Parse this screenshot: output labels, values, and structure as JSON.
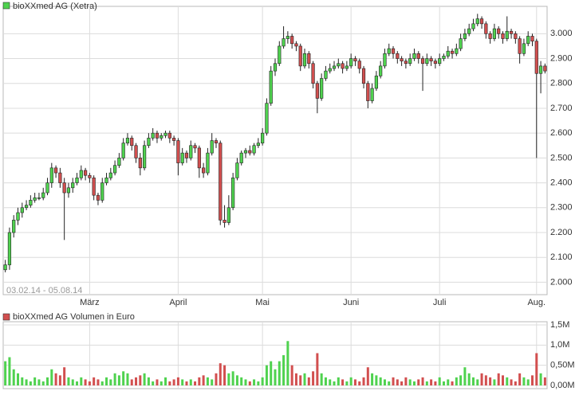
{
  "chart_data": [
    {
      "type": "candlestick",
      "title": "bioXXmed AG (Xetra)",
      "annotation": "03.02.14 - 05.08.14",
      "up_color": "#4fd24f",
      "down_color": "#d24f4f",
      "grid": true,
      "categories": [
        null,
        null,
        null,
        null,
        null,
        null,
        null,
        null,
        null,
        null,
        null,
        null,
        null,
        null,
        null,
        null,
        null,
        null,
        null,
        null,
        "März",
        null,
        null,
        null,
        null,
        null,
        null,
        null,
        null,
        null,
        null,
        null,
        null,
        null,
        null,
        null,
        null,
        null,
        null,
        null,
        null,
        "April",
        null,
        null,
        null,
        null,
        null,
        null,
        null,
        null,
        null,
        null,
        null,
        null,
        null,
        null,
        null,
        null,
        null,
        null,
        null,
        "Mai",
        null,
        null,
        null,
        null,
        null,
        null,
        null,
        null,
        null,
        null,
        null,
        null,
        null,
        null,
        null,
        null,
        null,
        null,
        null,
        null,
        "Juni",
        null,
        null,
        null,
        null,
        null,
        null,
        null,
        null,
        null,
        null,
        null,
        null,
        null,
        null,
        null,
        null,
        null,
        null,
        null,
        null,
        "Juli",
        null,
        null,
        null,
        null,
        null,
        null,
        null,
        null,
        null,
        null,
        null,
        null,
        null,
        null,
        null,
        null,
        null,
        null,
        null,
        null,
        null,
        null,
        "Aug.",
        null,
        null
      ],
      "open": [
        2.05,
        2.07,
        2.2,
        2.25,
        2.28,
        2.3,
        2.31,
        2.33,
        2.34,
        2.34,
        2.36,
        2.4,
        2.46,
        2.44,
        2.4,
        2.36,
        2.38,
        2.4,
        2.42,
        2.45,
        2.43,
        2.42,
        2.35,
        2.33,
        2.4,
        2.42,
        2.44,
        2.47,
        2.5,
        2.56,
        2.58,
        2.55,
        2.5,
        2.46,
        2.55,
        2.58,
        2.6,
        2.58,
        2.59,
        2.6,
        2.58,
        2.57,
        2.48,
        2.52,
        2.5,
        2.55,
        2.54,
        2.46,
        2.44,
        2.52,
        2.57,
        2.56,
        2.25,
        2.24,
        2.3,
        2.42,
        2.48,
        2.52,
        2.53,
        2.52,
        2.55,
        2.56,
        2.6,
        2.72,
        2.85,
        2.88,
        2.95,
        2.98,
        2.99,
        2.96,
        2.95,
        2.87,
        2.92,
        2.88,
        2.8,
        2.74,
        2.82,
        2.85,
        2.86,
        2.87,
        2.88,
        2.86,
        2.87,
        2.9,
        2.89,
        2.86,
        2.8,
        2.73,
        2.78,
        2.83,
        2.87,
        2.92,
        2.94,
        2.92,
        2.9,
        2.89,
        2.88,
        2.9,
        2.92,
        2.9,
        2.88,
        2.9,
        2.89,
        2.88,
        2.9,
        2.91,
        2.93,
        2.92,
        2.94,
        2.98,
        3.0,
        3.02,
        3.04,
        3.06,
        3.04,
        3.0,
        2.98,
        3.02,
        3.0,
        2.98,
        3.01,
        3.0,
        2.98,
        2.92,
        2.96,
        2.99,
        2.97,
        2.84,
        2.87
      ],
      "high": [
        2.09,
        2.22,
        2.27,
        2.3,
        2.32,
        2.33,
        2.35,
        2.36,
        2.36,
        2.38,
        2.42,
        2.48,
        2.47,
        2.46,
        2.42,
        2.4,
        2.42,
        2.44,
        2.47,
        2.46,
        2.44,
        2.43,
        2.36,
        2.42,
        2.44,
        2.46,
        2.49,
        2.52,
        2.58,
        2.6,
        2.59,
        2.56,
        2.52,
        2.57,
        2.6,
        2.62,
        2.61,
        2.6,
        2.61,
        2.61,
        2.59,
        2.58,
        2.54,
        2.53,
        2.57,
        2.56,
        2.55,
        2.48,
        2.54,
        2.6,
        2.58,
        2.57,
        2.31,
        2.35,
        2.44,
        2.5,
        2.53,
        2.54,
        2.55,
        2.56,
        2.58,
        2.62,
        2.74,
        2.87,
        2.9,
        2.97,
        3.03,
        3.01,
        3.0,
        2.97,
        2.96,
        2.94,
        2.93,
        2.89,
        2.81,
        2.84,
        2.87,
        2.88,
        2.89,
        2.9,
        2.89,
        2.89,
        2.92,
        2.91,
        2.9,
        2.87,
        2.81,
        2.8,
        2.85,
        2.89,
        2.94,
        2.96,
        2.95,
        2.93,
        2.91,
        2.9,
        2.92,
        2.94,
        2.93,
        2.91,
        2.92,
        2.91,
        2.9,
        2.92,
        2.92,
        2.95,
        2.94,
        2.96,
        3.0,
        3.02,
        3.04,
        3.06,
        3.08,
        3.07,
        3.05,
        3.01,
        3.04,
        3.03,
        3.01,
        3.07,
        3.02,
        3.01,
        2.99,
        2.98,
        3.01,
        3.0,
        2.98,
        2.89,
        2.88
      ],
      "low": [
        2.04,
        2.05,
        2.18,
        2.23,
        2.26,
        2.29,
        2.3,
        2.32,
        2.33,
        2.33,
        2.35,
        2.38,
        2.42,
        2.38,
        2.17,
        2.34,
        2.36,
        2.39,
        2.41,
        2.41,
        2.4,
        2.33,
        2.31,
        2.32,
        2.39,
        2.41,
        2.43,
        2.46,
        2.49,
        2.55,
        2.53,
        2.48,
        2.43,
        2.45,
        2.54,
        2.57,
        2.56,
        2.57,
        2.58,
        2.56,
        2.55,
        2.43,
        2.47,
        2.48,
        2.49,
        2.52,
        2.42,
        2.42,
        2.43,
        2.51,
        2.54,
        2.23,
        2.22,
        2.23,
        2.29,
        2.41,
        2.47,
        2.5,
        2.51,
        2.51,
        2.54,
        2.55,
        2.59,
        2.71,
        2.83,
        2.87,
        2.94,
        2.96,
        2.94,
        2.93,
        2.85,
        2.86,
        2.86,
        2.78,
        2.68,
        2.73,
        2.81,
        2.84,
        2.85,
        2.86,
        2.84,
        2.85,
        2.86,
        2.87,
        2.84,
        2.78,
        2.7,
        2.72,
        2.77,
        2.82,
        2.86,
        2.91,
        2.9,
        2.88,
        2.87,
        2.86,
        2.87,
        2.89,
        2.88,
        2.77,
        2.87,
        2.87,
        2.86,
        2.87,
        2.89,
        2.9,
        2.9,
        2.91,
        2.93,
        2.97,
        2.99,
        3.01,
        3.03,
        3.02,
        2.98,
        2.96,
        2.97,
        2.98,
        2.96,
        2.97,
        2.98,
        2.96,
        2.88,
        2.91,
        2.95,
        2.95,
        2.5,
        2.76,
        2.84
      ],
      "close": [
        2.07,
        2.2,
        2.25,
        2.28,
        2.3,
        2.31,
        2.33,
        2.34,
        2.34,
        2.36,
        2.4,
        2.46,
        2.44,
        2.4,
        2.36,
        2.38,
        2.4,
        2.42,
        2.45,
        2.43,
        2.42,
        2.35,
        2.33,
        2.4,
        2.42,
        2.44,
        2.47,
        2.5,
        2.56,
        2.58,
        2.55,
        2.5,
        2.46,
        2.55,
        2.58,
        2.6,
        2.58,
        2.59,
        2.6,
        2.58,
        2.57,
        2.48,
        2.52,
        2.5,
        2.55,
        2.54,
        2.46,
        2.44,
        2.52,
        2.57,
        2.56,
        2.25,
        2.24,
        2.3,
        2.42,
        2.48,
        2.52,
        2.53,
        2.52,
        2.55,
        2.56,
        2.6,
        2.72,
        2.85,
        2.88,
        2.95,
        2.98,
        2.99,
        2.96,
        2.95,
        2.87,
        2.92,
        2.88,
        2.8,
        2.74,
        2.82,
        2.85,
        2.86,
        2.87,
        2.88,
        2.86,
        2.87,
        2.9,
        2.89,
        2.86,
        2.8,
        2.73,
        2.78,
        2.83,
        2.87,
        2.92,
        2.94,
        2.92,
        2.9,
        2.89,
        2.88,
        2.9,
        2.92,
        2.9,
        2.88,
        2.9,
        2.89,
        2.88,
        2.9,
        2.91,
        2.93,
        2.92,
        2.94,
        2.98,
        3.0,
        3.02,
        3.04,
        3.06,
        3.04,
        3.0,
        2.98,
        3.02,
        3.0,
        2.98,
        3.01,
        3.0,
        2.98,
        2.92,
        2.96,
        2.99,
        2.97,
        2.84,
        2.87,
        2.85
      ],
      "ylim": [
        1.95,
        3.11
      ],
      "yticks": [
        {
          "value": 2.0,
          "label": "2.000"
        },
        {
          "value": 2.1,
          "label": "2.100"
        },
        {
          "value": 2.2,
          "label": "2.200"
        },
        {
          "value": 2.3,
          "label": "2.300"
        },
        {
          "value": 2.4,
          "label": "2.400"
        },
        {
          "value": 2.5,
          "label": "2.500"
        },
        {
          "value": 2.6,
          "label": "2.600"
        },
        {
          "value": 2.7,
          "label": "2.700"
        },
        {
          "value": 2.8,
          "label": "2.800"
        },
        {
          "value": 2.9,
          "label": "2.900"
        },
        {
          "value": 3.0,
          "label": "3.000"
        }
      ]
    },
    {
      "type": "bar",
      "title": "bioXXmed AG Volumen in Euro",
      "values": [
        0.6,
        0.7,
        0.4,
        0.3,
        0.2,
        0.15,
        0.1,
        0.2,
        0.15,
        0.1,
        0.2,
        0.4,
        0.3,
        0.25,
        0.45,
        0.2,
        0.15,
        0.1,
        0.2,
        0.15,
        0.1,
        0.2,
        0.15,
        0.1,
        0.2,
        0.15,
        0.3,
        0.25,
        0.35,
        0.3,
        0.15,
        0.2,
        0.25,
        0.3,
        0.2,
        0.1,
        0.15,
        0.1,
        0.2,
        0.1,
        0.15,
        0.2,
        0.15,
        0.1,
        0.15,
        0.1,
        0.2,
        0.25,
        0.2,
        0.15,
        0.3,
        0.55,
        0.5,
        0.3,
        0.35,
        0.25,
        0.2,
        0.15,
        0.1,
        0.15,
        0.1,
        0.2,
        0.5,
        0.6,
        0.4,
        0.6,
        0.75,
        1.1,
        0.5,
        0.3,
        0.25,
        0.3,
        0.2,
        0.35,
        0.8,
        0.3,
        0.2,
        0.15,
        0.1,
        0.2,
        0.15,
        0.1,
        0.2,
        0.15,
        0.1,
        0.2,
        0.45,
        0.3,
        0.25,
        0.2,
        0.15,
        0.1,
        0.2,
        0.15,
        0.1,
        0.2,
        0.15,
        0.1,
        0.15,
        0.2,
        0.1,
        0.15,
        0.1,
        0.2,
        0.1,
        0.15,
        0.1,
        0.2,
        0.25,
        0.45,
        0.3,
        0.2,
        0.15,
        0.3,
        0.25,
        0.2,
        0.15,
        0.3,
        0.25,
        0.2,
        0.15,
        0.1,
        0.3,
        0.2,
        0.15,
        0.25,
        0.8,
        0.3,
        0.2
      ],
      "ylim": [
        0,
        1.5
      ],
      "yticks": [
        {
          "value": 0,
          "label": "0,00M"
        },
        {
          "value": 0.5,
          "label": "0,50M"
        },
        {
          "value": 1.0,
          "label": "1,0M"
        },
        {
          "value": 1.5,
          "label": "1,5M"
        }
      ]
    }
  ]
}
